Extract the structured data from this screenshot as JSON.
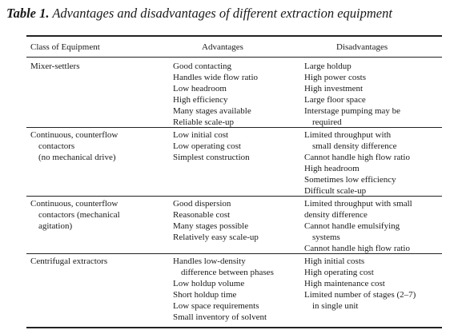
{
  "caption": {
    "label": "Table 1.",
    "title": "Advantages and disadvantages of different extraction equipment"
  },
  "table": {
    "headers": {
      "class": "Class of Equipment",
      "advantages": "Advantages",
      "disadvantages": "Disadvantages"
    },
    "rows": [
      {
        "class": [
          {
            "text": "Mixer-settlers",
            "indent": false
          }
        ],
        "advantages": [
          {
            "text": "Good contacting",
            "indent": false
          },
          {
            "text": "Handles wide flow ratio",
            "indent": false
          },
          {
            "text": "Low headroom",
            "indent": false
          },
          {
            "text": "High efficiency",
            "indent": false
          },
          {
            "text": "Many stages available",
            "indent": false
          },
          {
            "text": "Reliable scale-up",
            "indent": false
          }
        ],
        "disadvantages": [
          {
            "text": "Large holdup",
            "indent": false
          },
          {
            "text": "High power costs",
            "indent": false
          },
          {
            "text": "High investment",
            "indent": false
          },
          {
            "text": "Large floor space",
            "indent": false
          },
          {
            "text": "Interstage pumping may be",
            "indent": false
          },
          {
            "text": "required",
            "indent": true
          }
        ]
      },
      {
        "class": [
          {
            "text": "Continuous, counterflow",
            "indent": false
          },
          {
            "text": "contactors",
            "indent": true
          },
          {
            "text": "(no mechanical drive)",
            "indent": true
          }
        ],
        "advantages": [
          {
            "text": "Low initial cost",
            "indent": false
          },
          {
            "text": "Low operating cost",
            "indent": false
          },
          {
            "text": "Simplest construction",
            "indent": false
          }
        ],
        "disadvantages": [
          {
            "text": "Limited throughput with",
            "indent": false
          },
          {
            "text": "small density difference",
            "indent": true
          },
          {
            "text": "Cannot handle high flow ratio",
            "indent": false
          },
          {
            "text": "High headroom",
            "indent": false
          },
          {
            "text": "Sometimes low efficiency",
            "indent": false
          },
          {
            "text": "Difficult scale-up",
            "indent": false
          }
        ]
      },
      {
        "class": [
          {
            "text": "Continuous, counterflow",
            "indent": false
          },
          {
            "text": "contactors (mechanical",
            "indent": true
          },
          {
            "text": "agitation)",
            "indent": true
          }
        ],
        "advantages": [
          {
            "text": "Good dispersion",
            "indent": false
          },
          {
            "text": "Reasonable cost",
            "indent": false
          },
          {
            "text": "Many stages possible",
            "indent": false
          },
          {
            "text": "Relatively easy scale-up",
            "indent": false
          }
        ],
        "disadvantages": [
          {
            "text": "Limited throughput with small",
            "indent": false
          },
          {
            "text": "density difference",
            "indent": false
          },
          {
            "text": "Cannot handle emulsifying",
            "indent": false
          },
          {
            "text": "systems",
            "indent": true
          },
          {
            "text": "Cannot handle high flow ratio",
            "indent": false
          }
        ]
      },
      {
        "class": [
          {
            "text": "Centrifugal extractors",
            "indent": false
          }
        ],
        "advantages": [
          {
            "text": "Handles low-density",
            "indent": false
          },
          {
            "text": "difference between phases",
            "indent": true
          },
          {
            "text": "Low holdup volume",
            "indent": false
          },
          {
            "text": "Short holdup time",
            "indent": false
          },
          {
            "text": "Low space requirements",
            "indent": false
          },
          {
            "text": "Small inventory of solvent",
            "indent": false
          }
        ],
        "disadvantages": [
          {
            "text": "High initial costs",
            "indent": false
          },
          {
            "text": "High operating cost",
            "indent": false
          },
          {
            "text": "High maintenance cost",
            "indent": false
          },
          {
            "text": "Limited number of stages (2–7)",
            "indent": false
          },
          {
            "text": "in single unit",
            "indent": true
          }
        ]
      }
    ]
  }
}
